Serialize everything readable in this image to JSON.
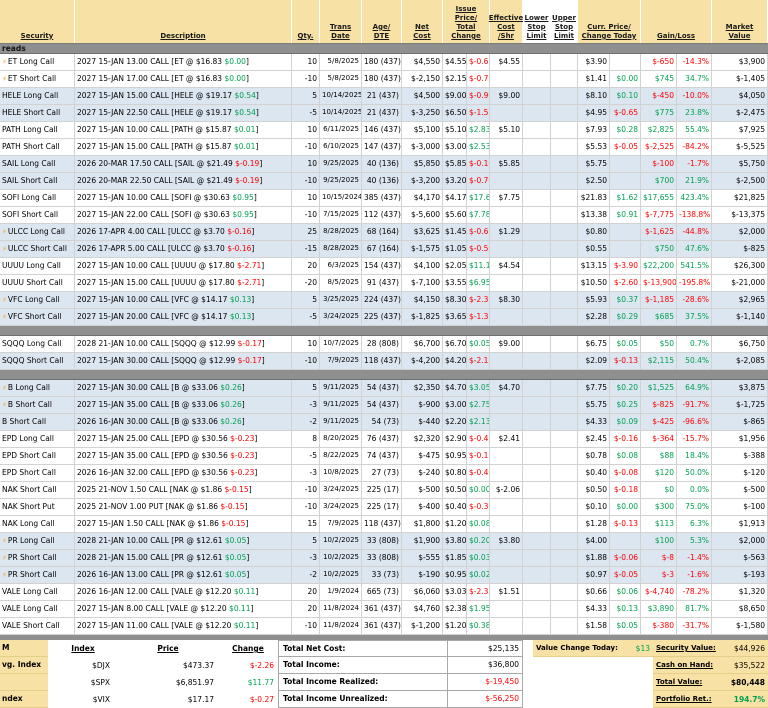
{
  "colors": {
    "header_bg": "#f7e1a5",
    "row_alt_bg": "#dce6f1",
    "separator_bg": "#8f8f8f",
    "negative": "#ff0000",
    "positive": "#00a050"
  },
  "icons": {
    "bolt": "⚡"
  },
  "header": {
    "cols": [
      "Security",
      "Description",
      "Qty.",
      "Trans\nDate",
      "Age/\nDTE",
      "Net\nCost",
      "Issue Price/\nTotal Change",
      "Effective\nCost\n/Shr",
      "Lower\nStop\nLimit",
      "Upper\nStop\nLimit",
      "Curr. Price/\nChange Today",
      "Gain/Loss",
      "Market\nValue"
    ]
  },
  "sections": [
    {
      "label": "reads",
      "rows": [
        {
          "bolt": true,
          "sec": "ET Long Call",
          "desc": "2027 15-JAN 13.00 CALL [ET @ $16.83",
          "uchg": "$0.00",
          "qty": "10",
          "date": "5/8/2025",
          "age": "180 (437)",
          "net": "$4,550",
          "issue": "$4.55",
          "tchg": "$-0.65",
          "eff": "$4.55",
          "curr": "$3.90",
          "dchg": "",
          "gain": "$-650",
          "pct": "-14.3%",
          "mv": "$3,900",
          "shade": 0
        },
        {
          "bolt": true,
          "sec": "ET Short Call",
          "desc": "2027 15-JAN 17.00 CALL [ET @ $16.83",
          "uchg": "$0.00",
          "qty": "-10",
          "date": "5/8/2025",
          "age": "180 (437)",
          "net": "$-2,150",
          "issue": "$2.15",
          "tchg": "$-0.75",
          "eff": "",
          "curr": "$1.41",
          "dchg": "$0.00",
          "gain": "$745",
          "pct": "34.7%",
          "mv": "$-1,405",
          "shade": 0
        },
        {
          "sec": "HELE Long Call",
          "desc": "2027 15-JAN 15.00 CALL [HELE @ $19.17",
          "uchg": "$0.54",
          "qty": "5",
          "date": "10/14/2025",
          "age": "21 (437)",
          "net": "$4,500",
          "issue": "$9.00",
          "tchg": "$-0.90",
          "eff": "$9.00",
          "curr": "$8.10",
          "dchg": "$0.10",
          "gain": "$-450",
          "pct": "-10.0%",
          "mv": "$4,050",
          "shade": 1
        },
        {
          "sec": "HELE Short Call",
          "desc": "2027 15-JAN 22.50 CALL [HELE @ $19.17",
          "uchg": "$0.54",
          "qty": "-5",
          "date": "10/14/2025",
          "age": "21 (437)",
          "net": "$-3,250",
          "issue": "$6.50",
          "tchg": "$-1.55",
          "eff": "",
          "curr": "$4.95",
          "dchg": "$-0.65",
          "gain": "$775",
          "pct": "23.8%",
          "mv": "$-2,475",
          "shade": 1
        },
        {
          "sec": "PATH Long Call",
          "desc": "2027 15-JAN 10.00 CALL [PATH @ $15.87",
          "uchg": "$0.01",
          "qty": "10",
          "date": "6/11/2025",
          "age": "146 (437)",
          "net": "$5,100",
          "issue": "$5.10",
          "tchg": "$2.83",
          "eff": "$5.10",
          "curr": "$7.93",
          "dchg": "$0.28",
          "gain": "$2,825",
          "pct": "55.4%",
          "mv": "$7,925",
          "shade": 0
        },
        {
          "sec": "PATH Short Call",
          "desc": "2027 15-JAN 15.00 CALL [PATH @ $15.87",
          "uchg": "$0.01",
          "qty": "-10",
          "date": "6/10/2025",
          "age": "147 (437)",
          "net": "$-3,000",
          "issue": "$3.00",
          "tchg": "$2.53",
          "eff": "",
          "curr": "$5.53",
          "dchg": "$-0.05",
          "gain": "$-2,525",
          "pct": "-84.2%",
          "mv": "$-5,525",
          "shade": 0
        },
        {
          "sec": "SAIL Long Call",
          "desc": "2026 20-MAR 17.50 CALL [SAIL @ $21.49",
          "uchg": "$-0.19",
          "qty": "10",
          "date": "9/25/2025",
          "age": "40 (136)",
          "net": "$5,850",
          "issue": "$5.85",
          "tchg": "$-0.10",
          "eff": "$5.85",
          "curr": "$5.75",
          "dchg": "",
          "gain": "$-100",
          "pct": "-1.7%",
          "mv": "$5,750",
          "shade": 1
        },
        {
          "sec": "SAIL Short Call",
          "desc": "2026 20-MAR 22.50 CALL [SAIL @ $21.49",
          "uchg": "$-0.19",
          "qty": "-10",
          "date": "9/25/2025",
          "age": "40 (136)",
          "net": "$-3,200",
          "issue": "$3.20",
          "tchg": "$-0.70",
          "eff": "",
          "curr": "$2.50",
          "dchg": "",
          "gain": "$700",
          "pct": "21.9%",
          "mv": "$-2,500",
          "shade": 1
        },
        {
          "sec": "SOFI Long Call",
          "desc": "2027 15-JAN 10.00 CALL [SOFI @ $30.63",
          "uchg": "$0.95",
          "qty": "10",
          "date": "10/15/2024",
          "age": "385 (437)",
          "net": "$4,170",
          "issue": "$4.17",
          "tchg": "$17.66",
          "eff": "$7.75",
          "curr": "$21.83",
          "dchg": "$1.62",
          "gain": "$17,655",
          "pct": "423.4%",
          "mv": "$21,825",
          "shade": 0
        },
        {
          "sec": "SOFI Short Call",
          "desc": "2027 15-JAN 22.00 CALL [SOFI @ $30.63",
          "uchg": "$0.95",
          "qty": "-10",
          "date": "7/15/2025",
          "age": "112 (437)",
          "net": "$-5,600",
          "issue": "$5.60",
          "tchg": "$7.78",
          "eff": "",
          "curr": "$13.38",
          "dchg": "$0.91",
          "gain": "$-7,775",
          "pct": "-138.8%",
          "mv": "$-13,375",
          "shade": 0
        },
        {
          "bolt": true,
          "sec": "ULCC Long Call",
          "desc": "2026 17-APR 4.00 CALL [ULCC @ $3.70",
          "uchg": "$-0.16",
          "qty": "25",
          "date": "8/28/2025",
          "age": "68 (164)",
          "net": "$3,625",
          "issue": "$1.45",
          "tchg": "$-0.65",
          "eff": "$1.29",
          "curr": "$0.80",
          "dchg": "",
          "gain": "$-1,625",
          "pct": "-44.8%",
          "mv": "$2,000",
          "shade": 1
        },
        {
          "bolt": true,
          "sec": "ULCC Short Call",
          "desc": "2026 17-APR 5.00 CALL [ULCC @ $3.70",
          "uchg": "$-0.16",
          "qty": "-15",
          "date": "8/28/2025",
          "age": "67 (164)",
          "net": "$-1,575",
          "issue": "$1.05",
          "tchg": "$-0.50",
          "eff": "",
          "curr": "$0.55",
          "dchg": "",
          "gain": "$750",
          "pct": "47.6%",
          "mv": "$-825",
          "shade": 1
        },
        {
          "sec": "UUUU Long Call",
          "desc": "2027 15-JAN 10.00 CALL [UUUU @ $17.80",
          "uchg": "$-2.71",
          "qty": "20",
          "date": "6/3/2025",
          "age": "154 (437)",
          "net": "$4,100",
          "issue": "$2.05",
          "tchg": "$11.10",
          "eff": "$4.54",
          "curr": "$13.15",
          "dchg": "$-3.90",
          "gain": "$22,200",
          "pct": "541.5%",
          "mv": "$26,300",
          "shade": 0
        },
        {
          "sec": "UUUU Short Call",
          "desc": "2027 15-JAN 15.00 CALL [UUUU @ $17.80",
          "uchg": "$-2.71",
          "qty": "-20",
          "date": "8/5/2025",
          "age": "91 (437)",
          "net": "$-7,100",
          "issue": "$3.55",
          "tchg": "$6.95",
          "eff": "",
          "curr": "$10.50",
          "dchg": "$-2.60",
          "gain": "$-13,900",
          "pct": "-195.8%",
          "mv": "$-21,000",
          "shade": 0
        },
        {
          "bolt": true,
          "sec": "VFC Long Call",
          "desc": "2027 15-JAN 10.00 CALL [VFC @ $14.17",
          "uchg": "$0.13",
          "qty": "5",
          "date": "3/25/2025",
          "age": "224 (437)",
          "net": "$4,150",
          "issue": "$8.30",
          "tchg": "$-2.38",
          "eff": "$8.30",
          "curr": "$5.93",
          "dchg": "$0.37",
          "gain": "$-1,185",
          "pct": "-28.6%",
          "mv": "$2,965",
          "shade": 1
        },
        {
          "bolt": true,
          "sec": "VFC Short Call",
          "desc": "2027 15-JAN 20.00 CALL [VFC @ $14.17",
          "uchg": "$0.13",
          "qty": "-5",
          "date": "3/24/2025",
          "age": "225 (437)",
          "net": "$-1,825",
          "issue": "$3.65",
          "tchg": "$-1.37",
          "eff": "",
          "curr": "$2.28",
          "dchg": "$0.29",
          "gain": "$685",
          "pct": "37.5%",
          "mv": "$-1,140",
          "shade": 1
        }
      ]
    },
    {
      "label": "",
      "rows": [
        {
          "sec": "SQQQ Long Call",
          "desc": "2028 21-JAN 10.00 CALL [SQQQ @ $12.99",
          "uchg": "$-0.17",
          "qty": "10",
          "date": "10/7/2025",
          "age": "28 (808)",
          "net": "$6,700",
          "issue": "$6.70",
          "tchg": "$0.05",
          "eff": "$9.00",
          "curr": "$6.75",
          "dchg": "$0.05",
          "gain": "$50",
          "pct": "0.7%",
          "mv": "$6,750",
          "shade": 0
        },
        {
          "sec": "SQQQ Short Call",
          "desc": "2027 15-JAN 30.00 CALL [SQQQ @ $12.99",
          "uchg": "$-0.17",
          "qty": "-10",
          "date": "7/9/2025",
          "age": "118 (437)",
          "net": "$-4,200",
          "issue": "$4.20",
          "tchg": "$-2.12",
          "eff": "",
          "curr": "$2.09",
          "dchg": "$-0.13",
          "gain": "$2,115",
          "pct": "50.4%",
          "mv": "$-2,085",
          "shade": 1
        }
      ]
    },
    {
      "label": "",
      "rows": [
        {
          "bolt": true,
          "sec": "B Long Call",
          "desc": "2027 15-JAN 30.00 CALL [B @ $33.06",
          "uchg": "$0.26",
          "qty": "5",
          "date": "9/11/2025",
          "age": "54 (437)",
          "net": "$2,350",
          "issue": "$4.70",
          "tchg": "$3.05",
          "eff": "$4.70",
          "curr": "$7.75",
          "dchg": "$0.20",
          "gain": "$1,525",
          "pct": "64.9%",
          "mv": "$3,875",
          "shade": 1
        },
        {
          "bolt": true,
          "sec": "B Short Call",
          "desc": "2027 15-JAN 35.00 CALL [B @ $33.06",
          "uchg": "$0.26",
          "qty": "-3",
          "date": "9/11/2025",
          "age": "54 (437)",
          "net": "$-900",
          "issue": "$3.00",
          "tchg": "$2.75",
          "eff": "",
          "curr": "$5.75",
          "dchg": "$0.25",
          "gain": "$-825",
          "pct": "-91.7%",
          "mv": "$-1,725",
          "shade": 1
        },
        {
          "sec": "B Short Call",
          "desc": "2026 16-JAN 30.00 CALL [B @ $33.06",
          "uchg": "$0.26",
          "qty": "-2",
          "date": "9/11/2025",
          "age": "54 (73)",
          "net": "$-440",
          "issue": "$2.20",
          "tchg": "$2.13",
          "eff": "",
          "curr": "$4.33",
          "dchg": "$0.09",
          "gain": "$-425",
          "pct": "-96.6%",
          "mv": "$-865",
          "shade": 1
        },
        {
          "sec": "EPD Long Call",
          "desc": "2027 15-JAN 25.00 CALL [EPD @ $30.56",
          "uchg": "$-0.23",
          "qty": "8",
          "date": "8/20/2025",
          "age": "76 (437)",
          "net": "$2,320",
          "issue": "$2.90",
          "tchg": "$-0.46",
          "eff": "$2.41",
          "curr": "$2.45",
          "dchg": "$-0.16",
          "gain": "$-364",
          "pct": "-15.7%",
          "mv": "$1,956",
          "shade": 0
        },
        {
          "sec": "EPD Short Call",
          "desc": "2027 15-JAN 35.00 CALL [EPD @ $30.56",
          "uchg": "$-0.23",
          "qty": "-5",
          "date": "8/22/2025",
          "age": "74 (437)",
          "net": "$-475",
          "issue": "$0.95",
          "tchg": "$-0.17",
          "eff": "",
          "curr": "$0.78",
          "dchg": "$0.08",
          "gain": "$88",
          "pct": "18.4%",
          "mv": "$-388",
          "shade": 0
        },
        {
          "sec": "EPD Short Call",
          "desc": "2026 16-JAN 32.00 CALL [EPD @ $30.56",
          "uchg": "$-0.23",
          "qty": "-3",
          "date": "10/8/2025",
          "age": "27 (73)",
          "net": "$-240",
          "issue": "$0.80",
          "tchg": "$-0.40",
          "eff": "",
          "curr": "$0.40",
          "dchg": "$-0.08",
          "gain": "$120",
          "pct": "50.0%",
          "mv": "$-120",
          "shade": 0
        },
        {
          "sec": "NAK Short Call",
          "desc": "2025 21-NOV 1.50 CALL [NAK @ $1.86",
          "uchg": "$-0.15",
          "qty": "-10",
          "date": "3/24/2025",
          "age": "225 (17)",
          "net": "$-500",
          "issue": "$0.50",
          "tchg": "$0.00",
          "eff": "$-2.06",
          "curr": "$0.50",
          "dchg": "$-0.18",
          "gain": "$0",
          "pct": "0.0%",
          "mv": "$-500",
          "shade": 0
        },
        {
          "sec": "NAK Short Put",
          "desc": "2025 21-NOV 1.00 PUT [NAK @ $1.86",
          "uchg": "$-0.15",
          "qty": "-10",
          "date": "3/24/2025",
          "age": "225 (17)",
          "net": "$-400",
          "issue": "$0.40",
          "tchg": "$-0.30",
          "eff": "",
          "curr": "$0.10",
          "dchg": "$0.00",
          "gain": "$300",
          "pct": "75.0%",
          "mv": "$-100",
          "shade": 0
        },
        {
          "sec": "NAK Long Call",
          "desc": "2027 15-JAN 1.50 CALL [NAK @ $1.86",
          "uchg": "$-0.15",
          "qty": "15",
          "date": "7/9/2025",
          "age": "118 (437)",
          "net": "$1,800",
          "issue": "$1.20",
          "tchg": "$0.08",
          "eff": "",
          "curr": "$1.28",
          "dchg": "$-0.13",
          "gain": "$113",
          "pct": "6.3%",
          "mv": "$1,913",
          "shade": 0
        },
        {
          "bolt": true,
          "sec": "PR Long Call",
          "desc": "2028 21-JAN 10.00 CALL [PR @ $12.61",
          "uchg": "$0.05",
          "qty": "5",
          "date": "10/2/2025",
          "age": "33 (808)",
          "net": "$1,900",
          "issue": "$3.80",
          "tchg": "$0.20",
          "eff": "$3.80",
          "curr": "$4.00",
          "dchg": "",
          "gain": "$100",
          "pct": "5.3%",
          "mv": "$2,000",
          "shade": 1
        },
        {
          "bolt": true,
          "sec": "PR Short Call",
          "desc": "2028 21-JAN 15.00 CALL [PR @ $12.61",
          "uchg": "$0.05",
          "qty": "-3",
          "date": "10/2/2025",
          "age": "33 (808)",
          "net": "$-555",
          "issue": "$1.85",
          "tchg": "$0.03",
          "eff": "",
          "curr": "$1.88",
          "dchg": "$-0.06",
          "gain": "$-8",
          "pct": "-1.4%",
          "mv": "$-563",
          "shade": 1
        },
        {
          "bolt": true,
          "sec": "PR Short Call",
          "desc": "2026 16-JAN 13.00 CALL [PR @ $12.61",
          "uchg": "$0.05",
          "qty": "-2",
          "date": "10/2/2025",
          "age": "33 (73)",
          "net": "$-190",
          "issue": "$0.95",
          "tchg": "$0.02",
          "eff": "",
          "curr": "$0.97",
          "dchg": "$-0.05",
          "gain": "$-3",
          "pct": "-1.6%",
          "mv": "$-193",
          "shade": 1
        },
        {
          "sec": "VALE Long Call",
          "desc": "2026 16-JAN 12.00 CALL [VALE @ $12.20",
          "uchg": "$0.11",
          "qty": "20",
          "date": "1/9/2024",
          "age": "665 (73)",
          "net": "$6,060",
          "issue": "$3.03",
          "tchg": "$-2.37",
          "eff": "$1.51",
          "curr": "$0.66",
          "dchg": "$0.06",
          "gain": "$-4,740",
          "pct": "-78.2%",
          "mv": "$1,320",
          "shade": 0
        },
        {
          "sec": "VALE Long Call",
          "desc": "2027 15-JAN 8.00 CALL [VALE @ $12.20",
          "uchg": "$0.11",
          "qty": "20",
          "date": "11/8/2024",
          "age": "361 (437)",
          "net": "$4,760",
          "issue": "$2.38",
          "tchg": "$1.95",
          "eff": "",
          "curr": "$4.33",
          "dchg": "$0.13",
          "gain": "$3,890",
          "pct": "81.7%",
          "mv": "$8,650",
          "shade": 0
        },
        {
          "sec": "VALE Short Call",
          "desc": "2027 15-JAN 11.00 CALL [VALE @ $12.20",
          "uchg": "$0.11",
          "qty": "-10",
          "date": "11/8/2024",
          "age": "361 (437)",
          "net": "$-1,200",
          "issue": "$1.20",
          "tchg": "$0.38",
          "eff": "",
          "curr": "$1.58",
          "dchg": "$0.05",
          "gain": "$-380",
          "pct": "-31.7%",
          "mv": "$-1,580",
          "shade": 0
        }
      ]
    }
  ],
  "footer": {
    "left": {
      "labels": [
        "M",
        "vg. Index",
        "",
        "ndex"
      ],
      "header": [
        "Index",
        "Price",
        "Change"
      ],
      "indices": [
        {
          "name": "$DJX",
          "price": "$473.37",
          "change": "$-2.26"
        },
        {
          "name": "$SPX",
          "price": "$6,851.97",
          "change": "$11.77"
        },
        {
          "name": "$VIX",
          "price": "$17.17",
          "change": "$-0.27"
        }
      ]
    },
    "totals": [
      {
        "label": "Total Net Cost:",
        "value": "$25,135"
      },
      {
        "label": "Total Income:",
        "value": "$36,800"
      },
      {
        "label": "Total Income Realized:",
        "value": "$-19,450"
      },
      {
        "label": "Total Income Unrealized:",
        "value": "$-56,250"
      }
    ],
    "value_change": {
      "label": "Value Change Today:",
      "value": "$13"
    },
    "summary": [
      {
        "label": "Security Value:",
        "value": "$44,926"
      },
      {
        "label": "Cash on Hand:",
        "value": "$35,522"
      },
      {
        "label": "Total Value:",
        "value": "$80,448"
      },
      {
        "label": "Portfolio Ret.:",
        "value": "194.7%"
      }
    ]
  }
}
